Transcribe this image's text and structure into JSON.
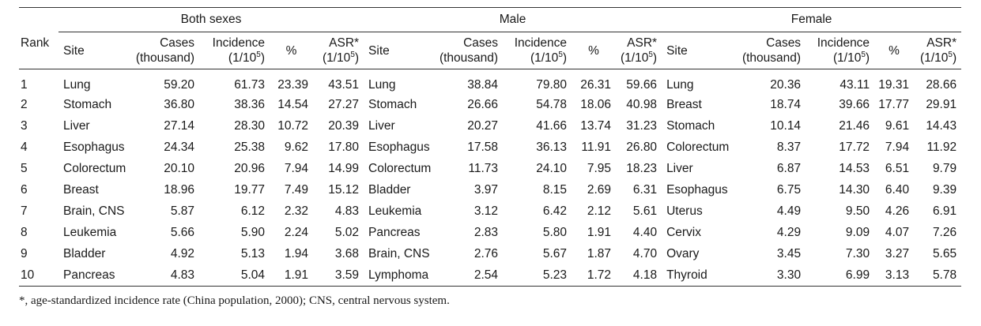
{
  "table": {
    "rank_header": "Rank",
    "groups": [
      {
        "title": "Both sexes"
      },
      {
        "title": "Male"
      },
      {
        "title": "Female"
      }
    ],
    "columns": {
      "site": "Site",
      "cases_line1": "Cases",
      "cases_line2": "(thousand)",
      "incidence_line1": "Incidence",
      "incidence_line2": "(1/10",
      "pct": "%",
      "asr_line1": "ASR*",
      "asr_line2": "(1/10",
      "exponent": "5",
      "close_paren": ")"
    },
    "rows": [
      {
        "rank": "1",
        "both": {
          "site": "Lung",
          "cases": "59.20",
          "incidence": "61.73",
          "pct": "23.39",
          "asr": "43.51"
        },
        "male": {
          "site": "Lung",
          "cases": "38.84",
          "incidence": "79.80",
          "pct": "26.31",
          "asr": "59.66"
        },
        "female": {
          "site": "Lung",
          "cases": "20.36",
          "incidence": "43.11",
          "pct": "19.31",
          "asr": "28.66"
        }
      },
      {
        "rank": "2",
        "both": {
          "site": "Stomach",
          "cases": "36.80",
          "incidence": "38.36",
          "pct": "14.54",
          "asr": "27.27"
        },
        "male": {
          "site": "Stomach",
          "cases": "26.66",
          "incidence": "54.78",
          "pct": "18.06",
          "asr": "40.98"
        },
        "female": {
          "site": "Breast",
          "cases": "18.74",
          "incidence": "39.66",
          "pct": "17.77",
          "asr": "29.91"
        }
      },
      {
        "rank": "3",
        "both": {
          "site": "Liver",
          "cases": "27.14",
          "incidence": "28.30",
          "pct": "10.72",
          "asr": "20.39"
        },
        "male": {
          "site": "Liver",
          "cases": "20.27",
          "incidence": "41.66",
          "pct": "13.74",
          "asr": "31.23"
        },
        "female": {
          "site": "Stomach",
          "cases": "10.14",
          "incidence": "21.46",
          "pct": "9.61",
          "asr": "14.43"
        }
      },
      {
        "rank": "4",
        "both": {
          "site": "Esophagus",
          "cases": "24.34",
          "incidence": "25.38",
          "pct": "9.62",
          "asr": "17.80"
        },
        "male": {
          "site": "Esophagus",
          "cases": "17.58",
          "incidence": "36.13",
          "pct": "11.91",
          "asr": "26.80"
        },
        "female": {
          "site": "Colorectum",
          "cases": "8.37",
          "incidence": "17.72",
          "pct": "7.94",
          "asr": "11.92"
        }
      },
      {
        "rank": "5",
        "both": {
          "site": "Colorectum",
          "cases": "20.10",
          "incidence": "20.96",
          "pct": "7.94",
          "asr": "14.99"
        },
        "male": {
          "site": "Colorectum",
          "cases": "11.73",
          "incidence": "24.10",
          "pct": "7.95",
          "asr": "18.23"
        },
        "female": {
          "site": "Liver",
          "cases": "6.87",
          "incidence": "14.53",
          "pct": "6.51",
          "asr": "9.79"
        }
      },
      {
        "rank": "6",
        "both": {
          "site": "Breast",
          "cases": "18.96",
          "incidence": "19.77",
          "pct": "7.49",
          "asr": "15.12"
        },
        "male": {
          "site": "Bladder",
          "cases": "3.97",
          "incidence": "8.15",
          "pct": "2.69",
          "asr": "6.31"
        },
        "female": {
          "site": "Esophagus",
          "cases": "6.75",
          "incidence": "14.30",
          "pct": "6.40",
          "asr": "9.39"
        }
      },
      {
        "rank": "7",
        "both": {
          "site": "Brain, CNS",
          "cases": "5.87",
          "incidence": "6.12",
          "pct": "2.32",
          "asr": "4.83"
        },
        "male": {
          "site": "Leukemia",
          "cases": "3.12",
          "incidence": "6.42",
          "pct": "2.12",
          "asr": "5.61"
        },
        "female": {
          "site": "Uterus",
          "cases": "4.49",
          "incidence": "9.50",
          "pct": "4.26",
          "asr": "6.91"
        }
      },
      {
        "rank": "8",
        "both": {
          "site": "Leukemia",
          "cases": "5.66",
          "incidence": "5.90",
          "pct": "2.24",
          "asr": "5.02"
        },
        "male": {
          "site": "Pancreas",
          "cases": "2.83",
          "incidence": "5.80",
          "pct": "1.91",
          "asr": "4.40"
        },
        "female": {
          "site": "Cervix",
          "cases": "4.29",
          "incidence": "9.09",
          "pct": "4.07",
          "asr": "7.26"
        }
      },
      {
        "rank": "9",
        "both": {
          "site": "Bladder",
          "cases": "4.92",
          "incidence": "5.13",
          "pct": "1.94",
          "asr": "3.68"
        },
        "male": {
          "site": "Brain, CNS",
          "cases": "2.76",
          "incidence": "5.67",
          "pct": "1.87",
          "asr": "4.70"
        },
        "female": {
          "site": "Ovary",
          "cases": "3.45",
          "incidence": "7.30",
          "pct": "3.27",
          "asr": "5.65"
        }
      },
      {
        "rank": "10",
        "both": {
          "site": "Pancreas",
          "cases": "4.83",
          "incidence": "5.04",
          "pct": "1.91",
          "asr": "3.59"
        },
        "male": {
          "site": "Lymphoma",
          "cases": "2.54",
          "incidence": "5.23",
          "pct": "1.72",
          "asr": "4.18"
        },
        "female": {
          "site": "Thyroid",
          "cases": "3.30",
          "incidence": "6.99",
          "pct": "3.13",
          "asr": "5.78"
        }
      }
    ]
  },
  "footnote": "*, age-standardized incidence rate (China population, 2000); CNS, central nervous system."
}
